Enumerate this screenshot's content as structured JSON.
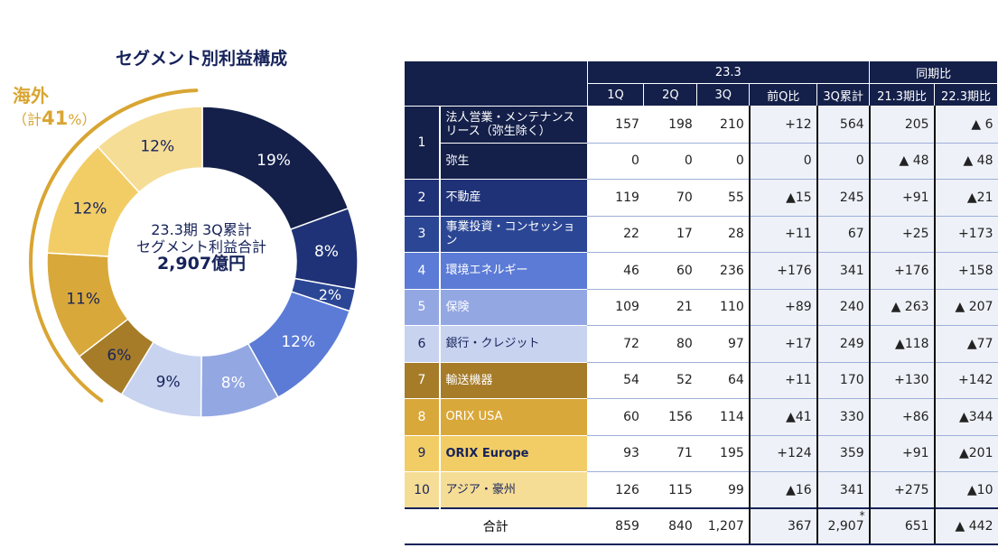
{
  "chart_data": {
    "type": "pie",
    "title": "セグメント別利益構成",
    "center_text": [
      "23.3期 3Q累計",
      "セグメント利益合計",
      "2,907億円"
    ],
    "overseas": {
      "label": "海外",
      "prefix": "（計",
      "value": "41",
      "suffix": "%）"
    },
    "slices": [
      {
        "segment": "法人営業・メンテナンスリース",
        "value": 564,
        "label": "19%",
        "color": "#14204a",
        "text": "#fff"
      },
      {
        "segment": "不動産",
        "value": 245,
        "label": "8%",
        "color": "#1f3277",
        "text": "#fff"
      },
      {
        "segment": "事業投資・コンセッション",
        "value": 67,
        "label": "2%",
        "color": "#2b4694",
        "text": "#fff"
      },
      {
        "segment": "環境エネルギー",
        "value": 341,
        "label": "12%",
        "color": "#5b7bd6",
        "text": "#fff"
      },
      {
        "segment": "保険",
        "value": 240,
        "label": "8%",
        "color": "#93a7e3",
        "text": "#fff"
      },
      {
        "segment": "銀行・クレジット",
        "value": 249,
        "label": "9%",
        "color": "#c8d3f0",
        "text": "#16235a"
      },
      {
        "segment": "輸送機器",
        "value": 170,
        "label": "6%",
        "color": "#a67c29",
        "text": "#16235a"
      },
      {
        "segment": "ORIX USA",
        "value": 330,
        "label": "11%",
        "color": "#d9a83a",
        "text": "#16235a"
      },
      {
        "segment": "ORIX Europe",
        "value": 359,
        "label": "12%",
        "color": "#f2cd66",
        "text": "#16235a"
      },
      {
        "segment": "アジア・豪州",
        "value": 341,
        "label": "12%",
        "color": "#f6dd95",
        "text": "#16235a"
      }
    ]
  },
  "table": {
    "group_headers": [
      "23.3",
      "同期比"
    ],
    "columns": [
      "1Q",
      "2Q",
      "3Q",
      "前Q比",
      "3Q累計",
      "21.3期比",
      "22.3期比"
    ],
    "rows": [
      {
        "no": "1",
        "label": "法人営業・メンテナンスリース（弥生除く）",
        "bg": "#14204a",
        "fg": "#fff",
        "vals": [
          "157",
          "198",
          "210",
          "+12",
          "564",
          "205",
          "▲ 6"
        ]
      },
      {
        "no": "",
        "label": "弥生",
        "bg": "#14204a",
        "fg": "#fff",
        "vals": [
          "0",
          "0",
          "0",
          "0",
          "0",
          "▲ 48",
          "▲ 48"
        ]
      },
      {
        "no": "2",
        "label": "不動産",
        "bg": "#1f3277",
        "fg": "#fff",
        "vals": [
          "119",
          "70",
          "55",
          "▲15",
          "245",
          "+91",
          "▲21"
        ]
      },
      {
        "no": "3",
        "label": "事業投資・コンセッション",
        "bg": "#2b4694",
        "fg": "#fff",
        "vals": [
          "22",
          "17",
          "28",
          "+11",
          "67",
          "+25",
          "+173"
        ]
      },
      {
        "no": "4",
        "label": "環境エネルギー",
        "bg": "#5b7bd6",
        "fg": "#fff",
        "vals": [
          "46",
          "60",
          "236",
          "+176",
          "341",
          "+176",
          "+158"
        ]
      },
      {
        "no": "5",
        "label": "保険",
        "bg": "#93a7e3",
        "fg": "#fff",
        "vals": [
          "109",
          "21",
          "110",
          "+89",
          "240",
          "▲ 263",
          "▲ 207"
        ]
      },
      {
        "no": "6",
        "label": "銀行・クレジット",
        "bg": "#c8d3f0",
        "fg": "#16235a",
        "vals": [
          "72",
          "80",
          "97",
          "+17",
          "249",
          "▲118",
          "▲77"
        ]
      },
      {
        "no": "7",
        "label": "輸送機器",
        "bg": "#a67c29",
        "fg": "#fff",
        "vals": [
          "54",
          "52",
          "64",
          "+11",
          "170",
          "+130",
          "+142"
        ]
      },
      {
        "no": "8",
        "label": "ORIX USA",
        "bg": "#d9a83a",
        "fg": "#fff",
        "vals": [
          "60",
          "156",
          "114",
          "▲41",
          "330",
          "+86",
          "▲344"
        ]
      },
      {
        "no": "9",
        "label": "ORIX Europe",
        "bg": "#f2cd66",
        "fg": "#16235a",
        "vals": [
          "93",
          "71",
          "195",
          "+124",
          "359",
          "+91",
          "▲201"
        ]
      },
      {
        "no": "10",
        "label": "アジア・豪州",
        "bg": "#f6dd95",
        "fg": "#16235a",
        "vals": [
          "126",
          "115",
          "99",
          "▲16",
          "341",
          "+275",
          "▲10"
        ]
      }
    ],
    "total": {
      "label": "合計",
      "vals": [
        "859",
        "840",
        "1,207",
        "367",
        "2,907",
        "651",
        "▲ 442"
      ],
      "note": "*"
    }
  }
}
